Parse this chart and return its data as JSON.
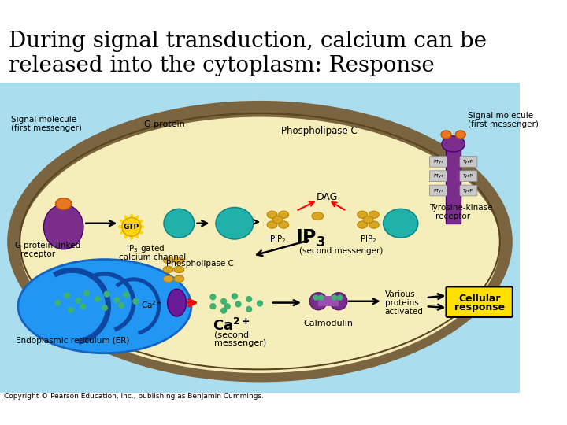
{
  "title_line1": "During signal transduction, calcium can be",
  "title_line2": "released into the cytoplasm: Response",
  "title_fontsize": 20,
  "title_color": "#000000",
  "title_font": "serif",
  "bg_color": "#ffffff",
  "copyright": "Copyright © Pearson Education, Inc., publishing as Benjamin Cummings.",
  "copyright_fontsize": 6.5,
  "cell_membrane_color": "#7a6540",
  "er_color": "#2196F3",
  "cytoplasm_bg": "#f5eebb",
  "outside_bg": "#aaddee"
}
